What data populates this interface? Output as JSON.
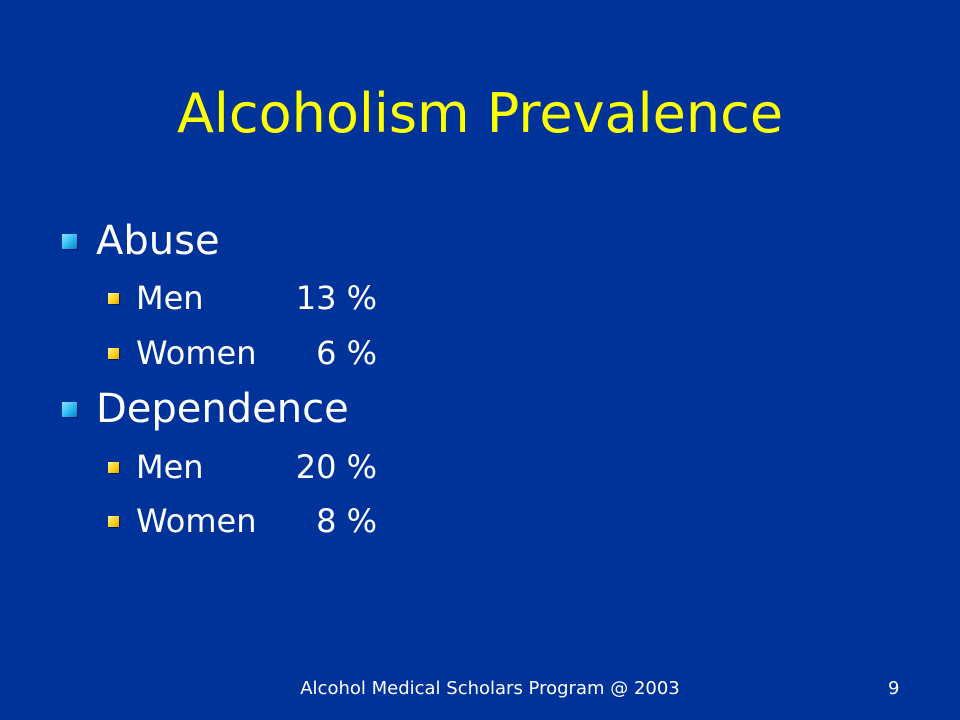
{
  "slide": {
    "title": "Alcoholism Prevalence",
    "sections": [
      {
        "heading": "Abuse",
        "items": [
          {
            "label": "Men",
            "value": "13 %"
          },
          {
            "label": "Women",
            "value": "6 %"
          }
        ]
      },
      {
        "heading": "Dependence",
        "items": [
          {
            "label": "Men",
            "value": "20 %"
          },
          {
            "label": "Women",
            "value": "8 %"
          }
        ]
      }
    ],
    "footer": "Alcohol Medical Scholars Program @ 2003",
    "page_number": "9",
    "colors": {
      "background": "#003399",
      "title": "#FFFF00",
      "text": "#FFFFFF",
      "level1_bullet": "#2ab8f0",
      "level2_bullet": "#ffd21a"
    }
  }
}
